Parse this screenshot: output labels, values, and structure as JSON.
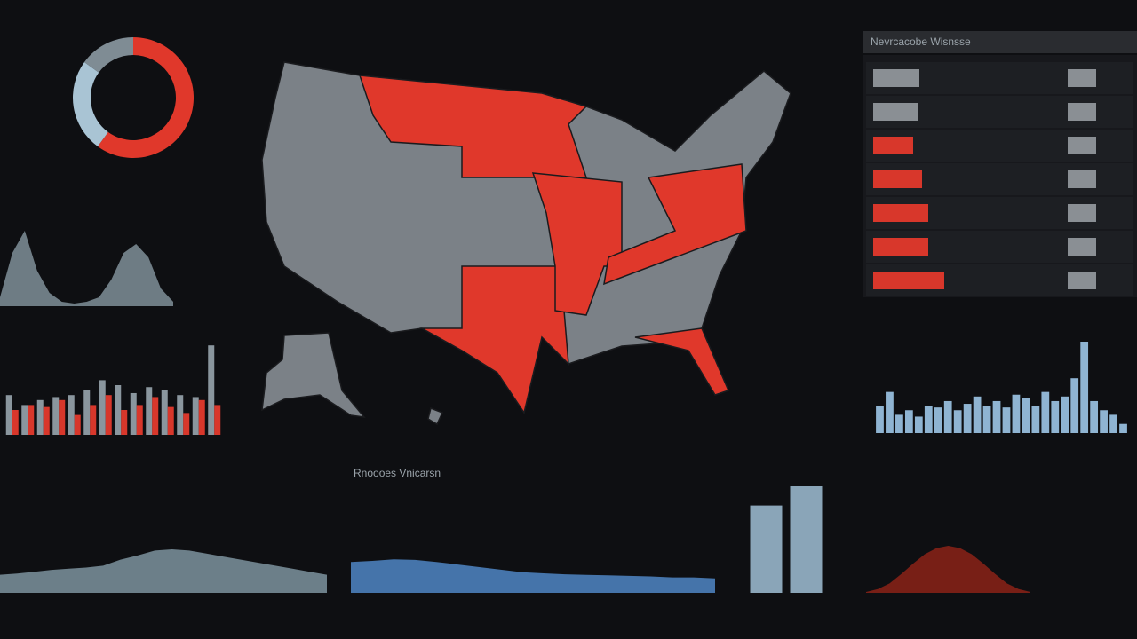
{
  "chart_data": [
    {
      "type": "pie",
      "values": [
        60,
        25,
        15
      ],
      "colors": [
        "#e0382b",
        "#a9c4d4",
        "#7f8c94"
      ]
    },
    {
      "type": "hbar",
      "title": "Nevrcacobe Wisnsse",
      "values": [
        52,
        50,
        45,
        55,
        62,
        62,
        80
      ],
      "colors": [
        "#8a8f94",
        "#8a8f94",
        "#d8372b",
        "#d8372b",
        "#d8372b",
        "#d8372b",
        "#d8372b"
      ],
      "xlim": [
        0,
        100
      ]
    },
    {
      "type": "bar",
      "ylim": [
        0,
        100
      ],
      "series": [
        {
          "color": "#8a969e",
          "values": [
            40,
            30,
            35,
            38,
            40,
            45,
            55,
            50,
            42,
            48,
            45,
            40,
            38,
            90
          ]
        },
        {
          "color": "#d8372b",
          "values": [
            25,
            30,
            28,
            35,
            20,
            30,
            40,
            25,
            30,
            38,
            28,
            22,
            35,
            30
          ]
        }
      ]
    },
    {
      "type": "bar",
      "ylim": [
        0,
        100
      ],
      "series": [
        {
          "color": "#8fb4d2",
          "values": [
            30,
            45,
            20,
            25,
            18,
            30,
            28,
            35,
            25,
            32,
            40,
            30,
            35,
            28,
            42,
            38,
            30,
            45,
            35,
            40,
            60,
            100,
            35,
            25,
            20,
            10
          ]
        }
      ]
    },
    {
      "type": "area",
      "ylim": [
        0,
        100
      ],
      "color": "#7d939f",
      "values": [
        30,
        32,
        35,
        38,
        40,
        42,
        45,
        55,
        62,
        70,
        72,
        70,
        65,
        60,
        55,
        50,
        45,
        40,
        35,
        30
      ]
    },
    {
      "type": "area",
      "title": "Rnoooes Vnicarsn",
      "ylim": [
        0,
        100
      ],
      "color": "#4f86c6",
      "values": [
        60,
        62,
        65,
        64,
        60,
        55,
        50,
        45,
        40,
        38,
        36,
        35,
        34,
        33,
        32,
        30,
        30,
        28
      ]
    },
    {
      "type": "bar",
      "ylim": [
        0,
        100
      ],
      "series": [
        {
          "color": "#8aa5b8",
          "values": [
            82,
            100
          ]
        }
      ]
    },
    {
      "type": "area",
      "ylim": [
        0,
        100
      ],
      "color": "#8b2218",
      "values": [
        2,
        8,
        20,
        40,
        62,
        82,
        95,
        100,
        95,
        82,
        62,
        40,
        20,
        8,
        2
      ]
    },
    {
      "type": "area",
      "ylim": [
        0,
        100
      ],
      "color": "#7f8f99",
      "values": [
        10,
        60,
        85,
        40,
        15,
        5,
        3,
        5,
        10,
        30,
        60,
        70,
        55,
        20,
        5
      ]
    }
  ]
}
